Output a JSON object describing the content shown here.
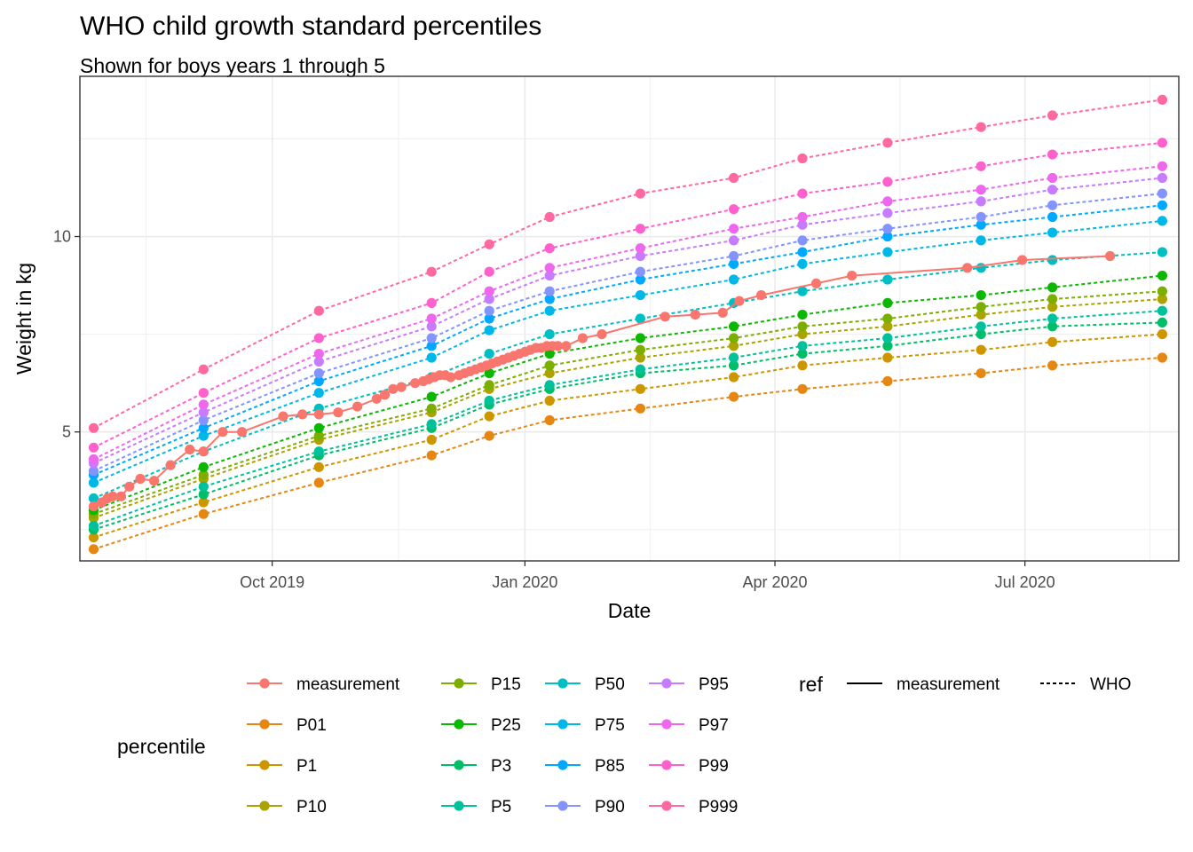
{
  "chart_data": {
    "type": "line",
    "title": "WHO child growth standard percentiles",
    "subtitle": "Shown for boys years 1 through 5",
    "xlabel": "Date",
    "ylabel": "Weight in kg",
    "x_type": "date",
    "xlim": [
      "2019-07-23",
      "2020-08-26"
    ],
    "ylim": [
      1.7,
      14.1
    ],
    "grid": true,
    "x_ticks": [
      {
        "date": "2019-10-01",
        "label": "Oct 2019"
      },
      {
        "date": "2020-01-01",
        "label": "Jan 2020"
      },
      {
        "date": "2020-04-01",
        "label": "Apr 2020"
      },
      {
        "date": "2020-07-01",
        "label": "Jul 2020"
      }
    ],
    "y_ticks": [
      5,
      10
    ],
    "who_dates": [
      "2019-07-28",
      "2019-09-06",
      "2019-10-18",
      "2019-11-28",
      "2019-12-19",
      "2020-01-10",
      "2020-02-12",
      "2020-03-17",
      "2020-04-11",
      "2020-05-12",
      "2020-06-15",
      "2020-07-11",
      "2020-08-20"
    ],
    "series": [
      {
        "name": "measurement",
        "ref": "measurement",
        "color": "#F8766D",
        "x": [
          "2019-07-28",
          "2019-07-31",
          "2019-08-02",
          "2019-08-04",
          "2019-08-07",
          "2019-08-10",
          "2019-08-14",
          "2019-08-19",
          "2019-08-25",
          "2019-09-01",
          "2019-09-06",
          "2019-09-13",
          "2019-09-20",
          "2019-10-05",
          "2019-10-12",
          "2019-10-18",
          "2019-10-25",
          "2019-11-01",
          "2019-11-08",
          "2019-11-11",
          "2019-11-14",
          "2019-11-17",
          "2019-11-22",
          "2019-11-25",
          "2019-11-27",
          "2019-11-29",
          "2019-12-01",
          "2019-12-03",
          "2019-12-05",
          "2019-12-08",
          "2019-12-10",
          "2019-12-12",
          "2019-12-14",
          "2019-12-16",
          "2019-12-18",
          "2019-12-20",
          "2019-12-22",
          "2019-12-24",
          "2019-12-26",
          "2019-12-28",
          "2019-12-30",
          "2020-01-01",
          "2020-01-03",
          "2020-01-05",
          "2020-01-07",
          "2020-01-09",
          "2020-01-11",
          "2020-01-13",
          "2020-01-16",
          "2020-01-22",
          "2020-01-29",
          "2020-02-21",
          "2020-03-03",
          "2020-03-13",
          "2020-03-19",
          "2020-03-27",
          "2020-04-16",
          "2020-04-29",
          "2020-06-10",
          "2020-06-30",
          "2020-08-01"
        ],
        "y": [
          3.1,
          3.2,
          3.3,
          3.35,
          3.35,
          3.6,
          3.8,
          3.75,
          4.15,
          4.55,
          4.5,
          5.0,
          5.0,
          5.4,
          5.45,
          5.45,
          5.5,
          5.65,
          5.85,
          5.95,
          6.1,
          6.15,
          6.25,
          6.3,
          6.35,
          6.4,
          6.45,
          6.45,
          6.4,
          6.45,
          6.5,
          6.55,
          6.6,
          6.65,
          6.7,
          6.75,
          6.8,
          6.85,
          6.9,
          6.95,
          7.0,
          7.05,
          7.1,
          7.15,
          7.15,
          7.2,
          7.2,
          7.2,
          7.2,
          7.4,
          7.5,
          7.95,
          8.0,
          8.05,
          8.35,
          8.5,
          8.8,
          9.0,
          9.2,
          9.4,
          9.5
        ]
      },
      {
        "name": "P01",
        "ref": "WHO",
        "color": "#E68613",
        "y": [
          2.0,
          2.9,
          3.7,
          4.4,
          4.9,
          5.3,
          5.6,
          5.9,
          6.1,
          6.3,
          6.5,
          6.7,
          6.9
        ]
      },
      {
        "name": "P1",
        "ref": "WHO",
        "color": "#CD9600",
        "y": [
          2.3,
          3.2,
          4.1,
          4.8,
          5.4,
          5.8,
          6.1,
          6.4,
          6.7,
          6.9,
          7.1,
          7.3,
          7.5
        ]
      },
      {
        "name": "P10",
        "ref": "WHO",
        "color": "#ABA300",
        "y": [
          2.8,
          3.8,
          4.8,
          5.5,
          6.1,
          6.5,
          6.9,
          7.2,
          7.5,
          7.7,
          8.0,
          8.2,
          8.4
        ]
      },
      {
        "name": "P15",
        "ref": "WHO",
        "color": "#7CAE00",
        "y": [
          2.9,
          3.9,
          4.9,
          5.6,
          6.2,
          6.7,
          7.1,
          7.4,
          7.7,
          7.9,
          8.2,
          8.4,
          8.6
        ]
      },
      {
        "name": "P25",
        "ref": "WHO",
        "color": "#0CB702",
        "y": [
          3.0,
          4.1,
          5.1,
          5.9,
          6.5,
          7.0,
          7.4,
          7.7,
          8.0,
          8.3,
          8.5,
          8.7,
          9.0
        ]
      },
      {
        "name": "P3",
        "ref": "WHO",
        "color": "#00BE67",
        "y": [
          2.5,
          3.4,
          4.4,
          5.1,
          5.7,
          6.1,
          6.5,
          6.7,
          7.0,
          7.2,
          7.5,
          7.7,
          7.8
        ]
      },
      {
        "name": "P5",
        "ref": "WHO",
        "color": "#00C19A",
        "y": [
          2.6,
          3.6,
          4.5,
          5.2,
          5.8,
          6.2,
          6.6,
          6.9,
          7.2,
          7.4,
          7.7,
          7.9,
          8.1
        ]
      },
      {
        "name": "P50",
        "ref": "WHO",
        "color": "#00BFC4",
        "y": [
          3.3,
          4.5,
          5.6,
          6.4,
          7.0,
          7.5,
          7.9,
          8.3,
          8.6,
          8.9,
          9.2,
          9.4,
          9.6
        ]
      },
      {
        "name": "P75",
        "ref": "WHO",
        "color": "#00B8E7",
        "y": [
          3.7,
          4.9,
          6.0,
          6.9,
          7.6,
          8.1,
          8.5,
          8.9,
          9.3,
          9.6,
          9.9,
          10.1,
          10.4
        ]
      },
      {
        "name": "P85",
        "ref": "WHO",
        "color": "#00A9FF",
        "y": [
          3.9,
          5.1,
          6.3,
          7.2,
          7.9,
          8.4,
          8.9,
          9.3,
          9.6,
          10.0,
          10.3,
          10.5,
          10.8
        ]
      },
      {
        "name": "P90",
        "ref": "WHO",
        "color": "#8494FF",
        "y": [
          4.0,
          5.3,
          6.5,
          7.4,
          8.1,
          8.6,
          9.1,
          9.5,
          9.9,
          10.2,
          10.5,
          10.8,
          11.1
        ]
      },
      {
        "name": "P95",
        "ref": "WHO",
        "color": "#C77CFF",
        "y": [
          4.2,
          5.5,
          6.8,
          7.7,
          8.4,
          9.0,
          9.5,
          9.9,
          10.3,
          10.6,
          10.9,
          11.2,
          11.5
        ]
      },
      {
        "name": "P97",
        "ref": "WHO",
        "color": "#ED68ED",
        "y": [
          4.3,
          5.7,
          7.0,
          7.9,
          8.6,
          9.2,
          9.7,
          10.2,
          10.5,
          10.9,
          11.2,
          11.5,
          11.8
        ]
      },
      {
        "name": "P99",
        "ref": "WHO",
        "color": "#FF61CC",
        "y": [
          4.6,
          6.0,
          7.4,
          8.3,
          9.1,
          9.7,
          10.2,
          10.7,
          11.1,
          11.4,
          11.8,
          12.1,
          12.4
        ]
      },
      {
        "name": "P999",
        "ref": "WHO",
        "color": "#FF68A1",
        "y": [
          5.1,
          6.6,
          8.1,
          9.1,
          9.8,
          10.5,
          11.1,
          11.5,
          12.0,
          12.4,
          12.8,
          13.1,
          13.5
        ]
      }
    ],
    "legend": {
      "position": "bottom",
      "color_title": "percentile",
      "linetype_title": "ref",
      "linetype_entries": [
        {
          "label": "measurement",
          "style": "solid"
        },
        {
          "label": "WHO",
          "style": "dotted"
        }
      ]
    }
  }
}
